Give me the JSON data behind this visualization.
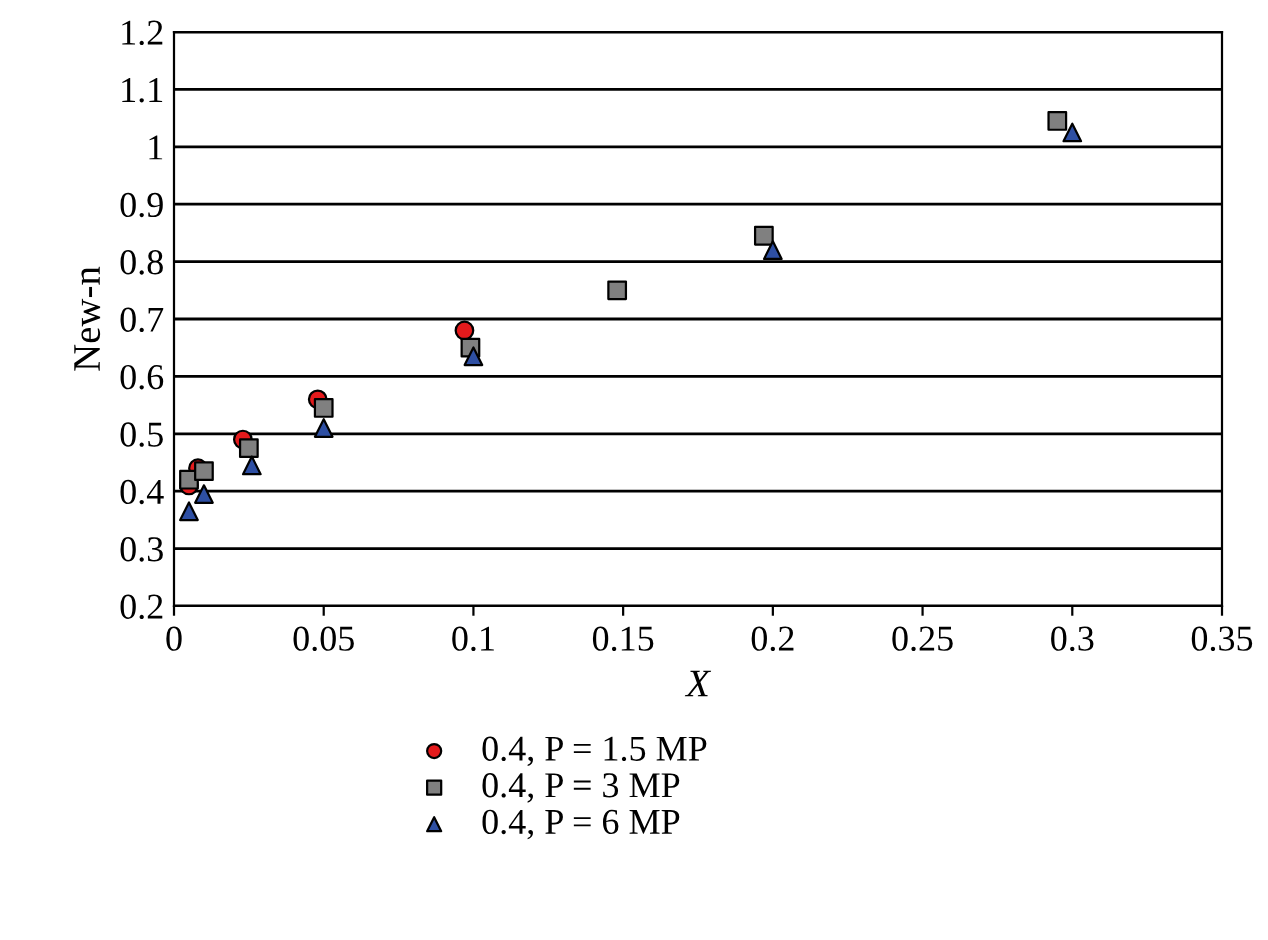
{
  "chart_data": {
    "type": "scatter",
    "xlabel": "X",
    "ylabel": "New-n",
    "xlim": [
      0,
      0.35
    ],
    "xticks": [
      0,
      0.05,
      0.1,
      0.15,
      0.2,
      0.25,
      0.3,
      0.35
    ],
    "ylim": [
      0.2,
      1.2
    ],
    "yticks": [
      0.2,
      0.3,
      0.4,
      0.5,
      0.6,
      0.7,
      0.8,
      0.9,
      1,
      1.1,
      1.2
    ],
    "grid": "y",
    "legend": "bottom",
    "series": [
      {
        "name": "0.4, P = 1.5 MP",
        "color": "#e41a1c",
        "marker": "circle",
        "x": [
          0.005,
          0.008,
          0.023,
          0.048,
          0.097
        ],
        "values": [
          0.41,
          0.44,
          0.49,
          0.56,
          0.68
        ]
      },
      {
        "name": "0.4, P = 3 MP",
        "color": "#808080",
        "marker": "square",
        "x": [
          0.005,
          0.01,
          0.025,
          0.05,
          0.099,
          0.148,
          0.197,
          0.295
        ],
        "values": [
          0.42,
          0.435,
          0.475,
          0.545,
          0.65,
          0.75,
          0.845,
          1.045
        ]
      },
      {
        "name": "0.4, P = 6 MP",
        "color": "#2e4fa3",
        "marker": "triangle",
        "x": [
          0.005,
          0.01,
          0.026,
          0.05,
          0.1,
          0.2,
          0.3
        ],
        "values": [
          0.365,
          0.395,
          0.445,
          0.51,
          0.635,
          0.82,
          1.025
        ]
      }
    ]
  }
}
